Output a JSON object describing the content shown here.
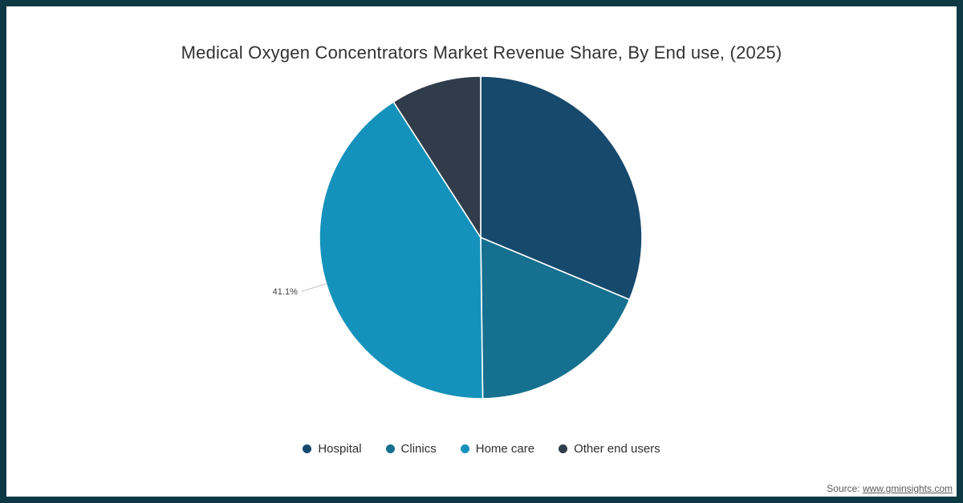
{
  "frame": {
    "border_color": "#0d3944"
  },
  "title": "Medical Oxygen Concentrators Market Revenue Share, By End use, (2025)",
  "source": {
    "prefix": "Source: ",
    "link": "www.gminsights.com"
  },
  "chart_data": {
    "type": "pie",
    "title": "Medical Oxygen Concentrators Market Revenue Share, By End use, (2025)",
    "unit": "percent",
    "start_angle_deg": 0,
    "direction": "clockwise",
    "legend_position": "bottom",
    "slice_stroke_color": "#ffffff",
    "leader_line_color": "#c4c4c4",
    "slices": [
      {
        "label": "Hospital",
        "value": 31.3,
        "color": "#17496d"
      },
      {
        "label": "Clinics",
        "value": 18.5,
        "color": "#16708f"
      },
      {
        "label": "Home care",
        "value": 41.1,
        "color": "#1592bb"
      },
      {
        "label": "Other end users",
        "value": 9.1,
        "color": "#303c49"
      }
    ],
    "data_label": {
      "slice": "Home care",
      "text": "41.1%"
    }
  }
}
